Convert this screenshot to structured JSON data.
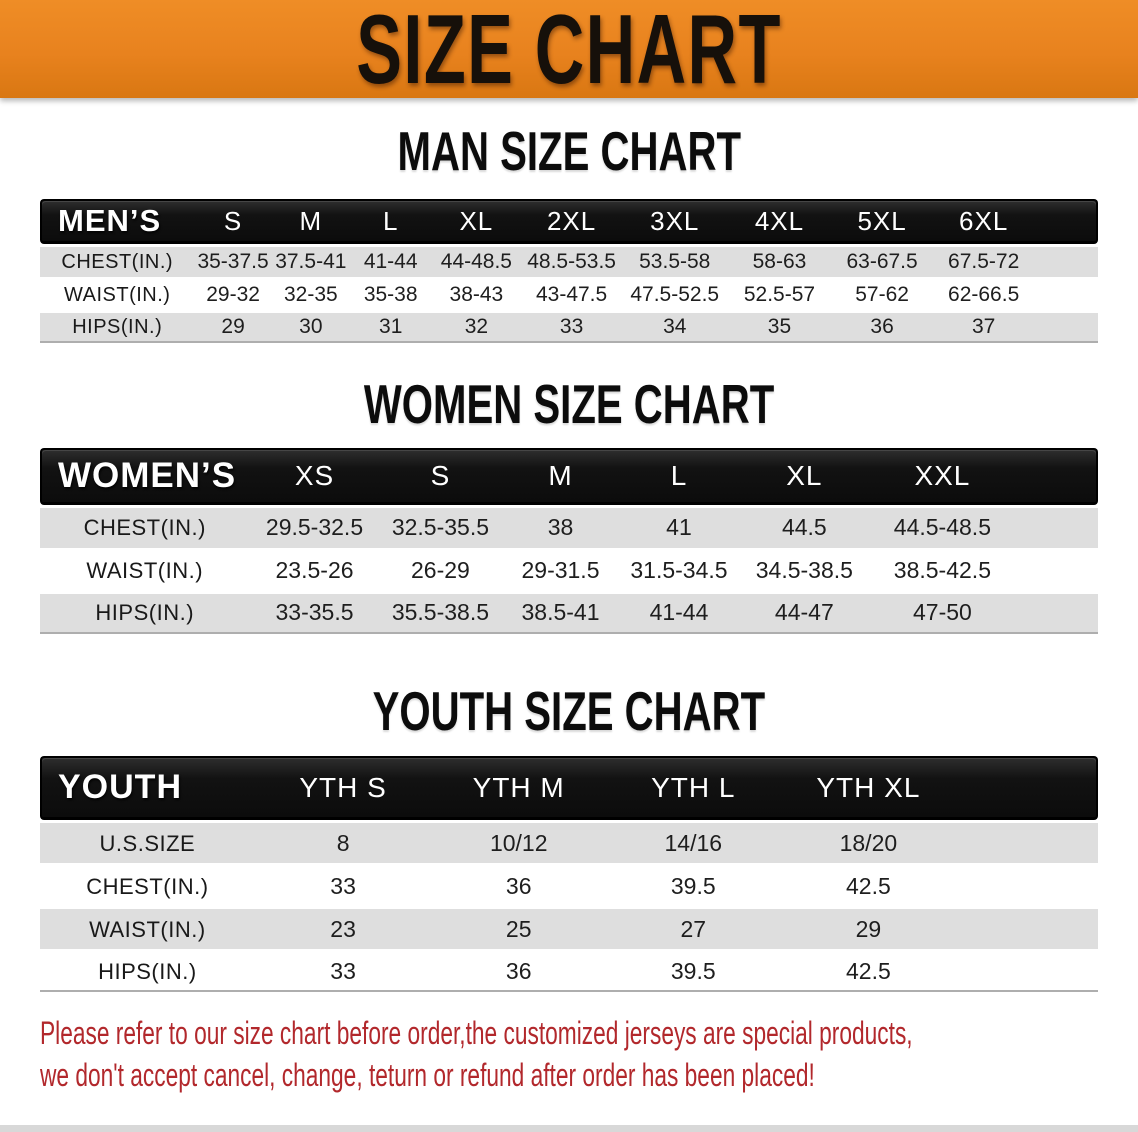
{
  "banner": {
    "title": "SIZE CHART"
  },
  "colors": {
    "banner_orange": "#E8821E",
    "header_bar_black": "#121212",
    "row_stripe_gray": "#DEDEDE",
    "disclaimer_red": "#B2282C"
  },
  "sections": [
    {
      "heading": "MAN SIZE CHART",
      "table": {
        "header_label": "MEN’S",
        "columns": [
          "S",
          "M",
          "L",
          "XL",
          "2XL",
          "3XL",
          "4XL",
          "5XL",
          "6XL"
        ],
        "col_widths_pct": [
          14.6,
          7.3,
          7.4,
          7.7,
          8.5,
          9.5,
          10.0,
          9.8,
          9.6,
          9.6,
          6.0
        ],
        "rows": [
          {
            "label": "CHEST(IN.)",
            "values": [
              "35-37.5",
              "37.5-41",
              "41-44",
              "44-48.5",
              "48.5-53.5",
              "53.5-58",
              "58-63",
              "63-67.5",
              "67.5-72"
            ]
          },
          {
            "label": "WAIST(IN.)",
            "values": [
              "29-32",
              "32-35",
              "35-38",
              "38-43",
              "43-47.5",
              "47.5-52.5",
              "52.5-57",
              "57-62",
              "62-66.5"
            ]
          },
          {
            "label": "HIPS(IN.)",
            "values": [
              "29",
              "30",
              "31",
              "32",
              "33",
              "34",
              "35",
              "36",
              "37"
            ]
          }
        ]
      }
    },
    {
      "heading": "WOMEN SIZE CHART",
      "table": {
        "header_label": "WOMEN’S",
        "columns": [
          "XS",
          "S",
          "M",
          "L",
          "XL",
          "XXL"
        ],
        "col_widths_pct": [
          19.8,
          12.3,
          11.5,
          11.2,
          11.2,
          12.5,
          13.6,
          7.9
        ],
        "rows": [
          {
            "label": "CHEST(IN.)",
            "values": [
              "29.5-32.5",
              "32.5-35.5",
              "38",
              "41",
              "44.5",
              "44.5-48.5"
            ]
          },
          {
            "label": "WAIST(IN.)",
            "values": [
              "23.5-26",
              "26-29",
              "29-31.5",
              "31.5-34.5",
              "34.5-38.5",
              "38.5-42.5"
            ]
          },
          {
            "label": "HIPS(IN.)",
            "values": [
              "33-35.5",
              "35.5-38.5",
              "38.5-41",
              "41-44",
              "44-47",
              "47-50"
            ]
          }
        ]
      }
    },
    {
      "heading": "YOUTH SIZE CHART",
      "table": {
        "header_label": "YOUTH",
        "columns": [
          "YTH S",
          "YTH M",
          "YTH L",
          "YTH XL"
        ],
        "col_widths_pct": [
          20.3,
          16.7,
          16.5,
          16.5,
          16.6,
          13.4
        ],
        "rows": [
          {
            "label": "U.S.SIZE",
            "values": [
              "8",
              "10/12",
              "14/16",
              "18/20"
            ]
          },
          {
            "label": "CHEST(IN.)",
            "values": [
              "33",
              "36",
              "39.5",
              "42.5"
            ]
          },
          {
            "label": "WAIST(IN.)",
            "values": [
              "23",
              "25",
              "27",
              "29"
            ]
          },
          {
            "label": "HIPS(IN.)",
            "values": [
              "33",
              "36",
              "39.5",
              "42.5"
            ]
          }
        ]
      }
    }
  ],
  "disclaimer": {
    "lines": [
      "Please refer to our size chart before order,the customized jerseys are special products,",
      "we don't accept cancel, change, teturn or refund after order has been placed!"
    ]
  }
}
